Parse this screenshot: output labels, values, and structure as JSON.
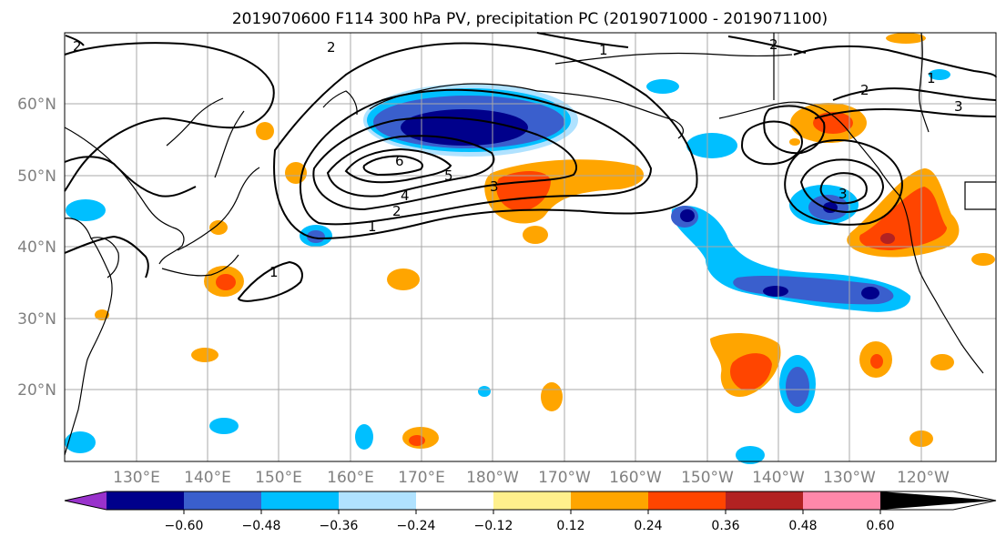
{
  "title": "2019070600 F114 300 hPa PV, precipitation PC (2019071000 - 2019071100)",
  "lat_labels": [
    "60°N",
    "50°N",
    "40°N",
    "30°N",
    "20°N"
  ],
  "lon_labels": [
    "130°E",
    "140°E",
    "150°E",
    "160°E",
    "170°E",
    "180°W",
    "170°W",
    "160°W",
    "150°W",
    "140°W",
    "130°W",
    "120°W"
  ],
  "pv_contour_labels": [
    "1",
    "2",
    "3",
    "4",
    "5",
    "6",
    "1",
    "2",
    "3",
    "1",
    "2",
    "1",
    "2",
    "3",
    "2"
  ],
  "colorbar": {
    "ticks": [
      "−0.60",
      "−0.48",
      "−0.36",
      "−0.24",
      "−0.12",
      "0.12",
      "0.24",
      "0.36",
      "0.48",
      "0.60"
    ],
    "colors": [
      "#9932cc",
      "#00008b",
      "#3a5fcd",
      "#00bfff",
      "#b0e2ff",
      "#ffffff",
      "#fff08c",
      "#ffa500",
      "#ff4500",
      "#b22222",
      "#ff88aa"
    ]
  }
}
